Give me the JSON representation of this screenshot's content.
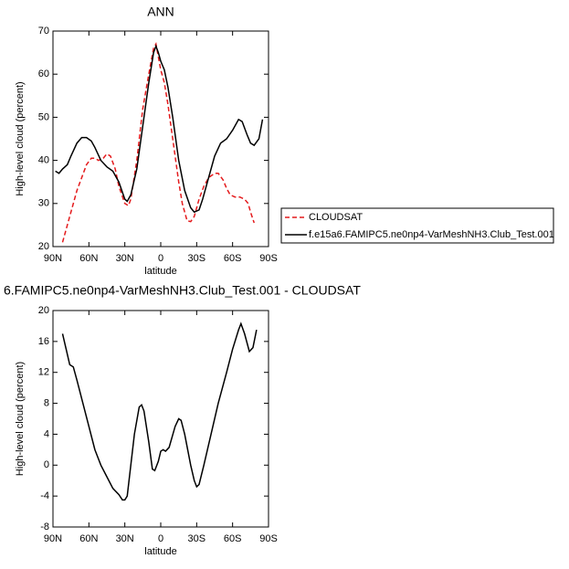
{
  "chart_data": [
    {
      "type": "line",
      "title": "ANN",
      "xlabel": "latitude",
      "ylabel": "High-level cloud (percent)",
      "xlim": [
        90,
        -90
      ],
      "ylim": [
        20,
        70
      ],
      "xticks": [
        {
          "value": 90,
          "label": "90N"
        },
        {
          "value": 60,
          "label": "60N"
        },
        {
          "value": 30,
          "label": "30N"
        },
        0,
        {
          "value": -30,
          "label": "30S"
        },
        {
          "value": -60,
          "label": "60S"
        },
        {
          "value": -90,
          "label": "90S"
        }
      ],
      "yticks": [
        20,
        30,
        40,
        50,
        60,
        70
      ],
      "legend": "right",
      "series": [
        {
          "name": "CLOUDSAT",
          "color": "#e41a1c",
          "dash": true,
          "x": [
            82,
            78,
            74,
            70,
            66,
            62,
            58,
            55,
            52,
            48,
            45,
            42,
            38,
            35,
            30,
            27,
            25,
            20,
            15,
            10,
            6,
            4,
            2,
            0,
            -3,
            -6,
            -10,
            -15,
            -18,
            -22,
            -25,
            -28,
            -32,
            -36,
            -40,
            -45,
            -48,
            -52,
            -55,
            -58,
            -62,
            -66,
            -70,
            -73,
            -75,
            -78
          ],
          "values": [
            21,
            25,
            29,
            33,
            36,
            39,
            40.5,
            40.5,
            40,
            40.5,
            41.5,
            41,
            38,
            34,
            30,
            29.5,
            31,
            40,
            52,
            60,
            66,
            67,
            64,
            61,
            58,
            53,
            45,
            35,
            30,
            26,
            25.8,
            27,
            31,
            34,
            36,
            37,
            37,
            35.5,
            33.5,
            32,
            31.5,
            31.5,
            31,
            30,
            28,
            25.5
          ]
        },
        {
          "name": "f.e15a6.FAMIPC5.ne0np4-VarMeshNH3.Club_Test.001",
          "color": "#000000",
          "dash": false,
          "x": [
            88,
            85,
            82,
            78,
            75,
            70,
            66,
            62,
            58,
            55,
            50,
            45,
            40,
            35,
            30,
            28,
            25,
            20,
            15,
            10,
            6,
            4,
            2,
            0,
            -3,
            -6,
            -10,
            -15,
            -20,
            -25,
            -28,
            -32,
            -35,
            -40,
            -45,
            -50,
            -55,
            -60,
            -65,
            -68,
            -72,
            -75,
            -78,
            -82,
            -85
          ],
          "values": [
            37.5,
            37,
            38,
            39,
            41,
            44,
            45.3,
            45.3,
            44.5,
            43,
            40,
            38.5,
            37.5,
            35,
            31,
            30.5,
            32,
            38,
            48,
            58,
            65,
            66.5,
            65,
            63,
            61,
            57,
            50,
            40,
            33,
            29,
            28,
            28.5,
            31,
            36,
            41,
            44,
            45,
            47,
            49.5,
            49,
            46,
            44,
            43.5,
            45,
            49.5
          ]
        }
      ]
    },
    {
      "type": "line",
      "title": "6.FAMIPC5.ne0np4-VarMeshNH3.Club_Test.001 - CLOUDSAT",
      "xlabel": "latitude",
      "ylabel": "High-level cloud (percent)",
      "xlim": [
        90,
        -90
      ],
      "ylim": [
        -8,
        20
      ],
      "xticks": [
        {
          "value": 90,
          "label": "90N"
        },
        {
          "value": 60,
          "label": "60N"
        },
        {
          "value": 30,
          "label": "30N"
        },
        0,
        {
          "value": -30,
          "label": "30S"
        },
        {
          "value": -60,
          "label": "60S"
        },
        {
          "value": -90,
          "label": "90S"
        }
      ],
      "yticks": [
        -8,
        -4,
        0,
        4,
        8,
        12,
        16,
        20
      ],
      "series": [
        {
          "color": "#000000",
          "dash": false,
          "x": [
            82,
            79,
            76,
            73,
            70,
            65,
            60,
            55,
            50,
            45,
            40,
            35,
            32,
            30,
            28,
            25,
            22,
            18,
            16,
            14,
            10,
            7,
            5,
            2,
            0,
            -2,
            -4,
            -7,
            -12,
            -15,
            -17,
            -20,
            -25,
            -28,
            -30,
            -32,
            -36,
            -42,
            -48,
            -55,
            -60,
            -65,
            -67,
            -70,
            -74,
            -77,
            -80
          ],
          "values": [
            17,
            15,
            13,
            12.7,
            11,
            8,
            5,
            2,
            0,
            -1.5,
            -3,
            -3.8,
            -4.5,
            -4.5,
            -4,
            0,
            4,
            7.5,
            7.8,
            7,
            3,
            -0.5,
            -0.7,
            0.5,
            1.8,
            2,
            1.8,
            2.3,
            5,
            6,
            5.8,
            4,
            0,
            -2,
            -2.8,
            -2.5,
            0,
            4,
            8,
            12,
            15,
            17.5,
            18.3,
            17,
            14.7,
            15.2,
            17.5
          ]
        }
      ]
    }
  ]
}
